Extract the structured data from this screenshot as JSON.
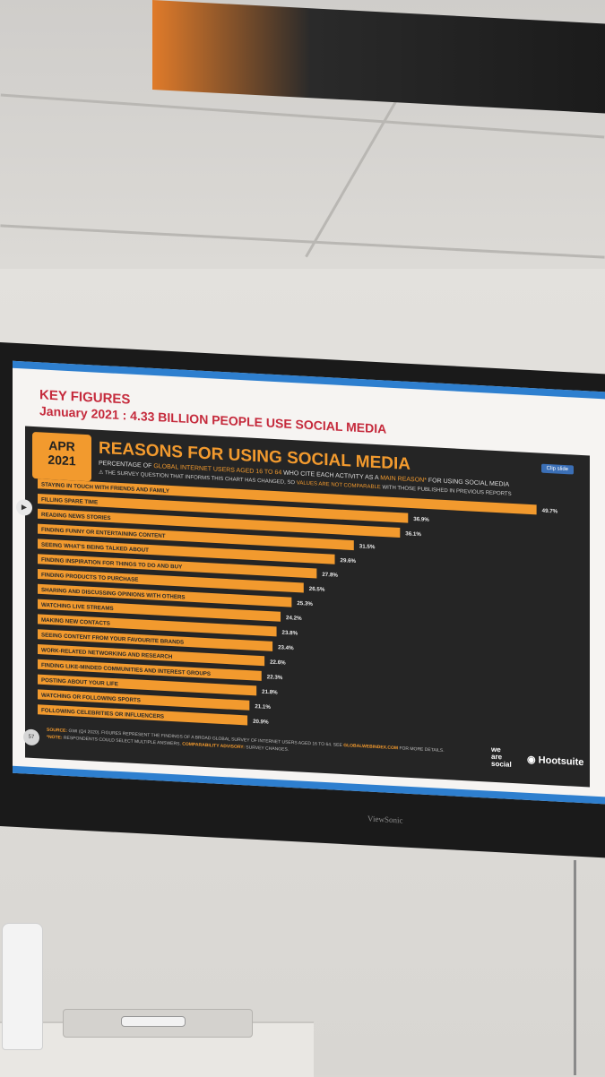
{
  "header": {
    "title": "KEY FIGURES",
    "subtitle": "January 2021 : 4.33 BILLION PEOPLE USE SOCIAL MEDIA"
  },
  "badge": {
    "month": "APR",
    "year": "2021"
  },
  "clip_button": "Clip slide",
  "colors": {
    "accent": "#f29a2e",
    "slide_bg": "#252525",
    "header_red": "#c52a3c",
    "band_blue": "#2e7fcf"
  },
  "chart_data": {
    "type": "bar",
    "orientation": "horizontal",
    "title": "REASONS FOR USING SOCIAL MEDIA",
    "subtitle_parts": [
      "PERCENTAGE OF ",
      "GLOBAL INTERNET USERS AGED 16 TO 64",
      " WHO CITE EACH ACTIVITY AS A ",
      "MAIN REASON*",
      " FOR USING SOCIAL MEDIA"
    ],
    "advisory_parts": [
      "THE SURVEY QUESTION THAT INFORMS THIS CHART HAS CHANGED, SO ",
      "VALUES ARE NOT COMPARABLE",
      " WITH THOSE PUBLISHED IN PREVIOUS REPORTS"
    ],
    "categories": [
      "STAYING IN TOUCH WITH FRIENDS AND FAMILY",
      "FILLING SPARE TIME",
      "READING NEWS STORIES",
      "FINDING FUNNY OR ENTERTAINING CONTENT",
      "SEEING WHAT'S BEING TALKED ABOUT",
      "FINDING INSPIRATION FOR THINGS TO DO AND BUY",
      "FINDING PRODUCTS TO PURCHASE",
      "SHARING AND DISCUSSING OPINIONS WITH OTHERS",
      "WATCHING LIVE STREAMS",
      "MAKING NEW CONTACTS",
      "SEEING CONTENT FROM YOUR FAVOURITE BRANDS",
      "WORK-RELATED NETWORKING AND RESEARCH",
      "FINDING LIKE-MINDED COMMUNITIES AND INTEREST GROUPS",
      "POSTING ABOUT YOUR LIFE",
      "WATCHING OR FOLLOWING SPORTS",
      "FOLLOWING CELEBRITIES OR INFLUENCERS"
    ],
    "values": [
      49.7,
      36.9,
      36.1,
      31.5,
      29.6,
      27.8,
      26.5,
      25.3,
      24.2,
      23.8,
      23.4,
      22.6,
      22.3,
      21.8,
      21.1,
      20.9
    ],
    "value_labels": [
      "49.7%",
      "36.9%",
      "36.1%",
      "31.5%",
      "29.6%",
      "27.8%",
      "26.5%",
      "25.3%",
      "24.2%",
      "23.8%",
      "23.4%",
      "22.6%",
      "22.3%",
      "21.8%",
      "21.1%",
      "20.9%"
    ],
    "xlim": [
      0,
      50
    ],
    "grid": false,
    "legend": "none"
  },
  "footer": {
    "source_label": "SOURCE:",
    "source_text": "GWI (Q4 2020). FIGURES REPRESENT THE FINDINGS OF A BROAD GLOBAL SURVEY OF INTERNET USERS AGED 16 TO 64. SEE ",
    "source_link": "GLOBALWEBINDEX.COM",
    "source_tail": " FOR MORE DETAILS.",
    "note_label": "*NOTE:",
    "note_text": "RESPONDENTS COULD SELECT MULTIPLE ANSWERS.",
    "advisory_label": "COMPARABILITY ADVISORY:",
    "advisory_text": "SURVEY CHANGES.",
    "page_number": "57",
    "logo_we_line1": "we",
    "logo_we_line2": "are",
    "logo_we_line3": "social",
    "logo_hootsuite": "Hootsuite"
  },
  "tv_brand": "ViewSonic"
}
